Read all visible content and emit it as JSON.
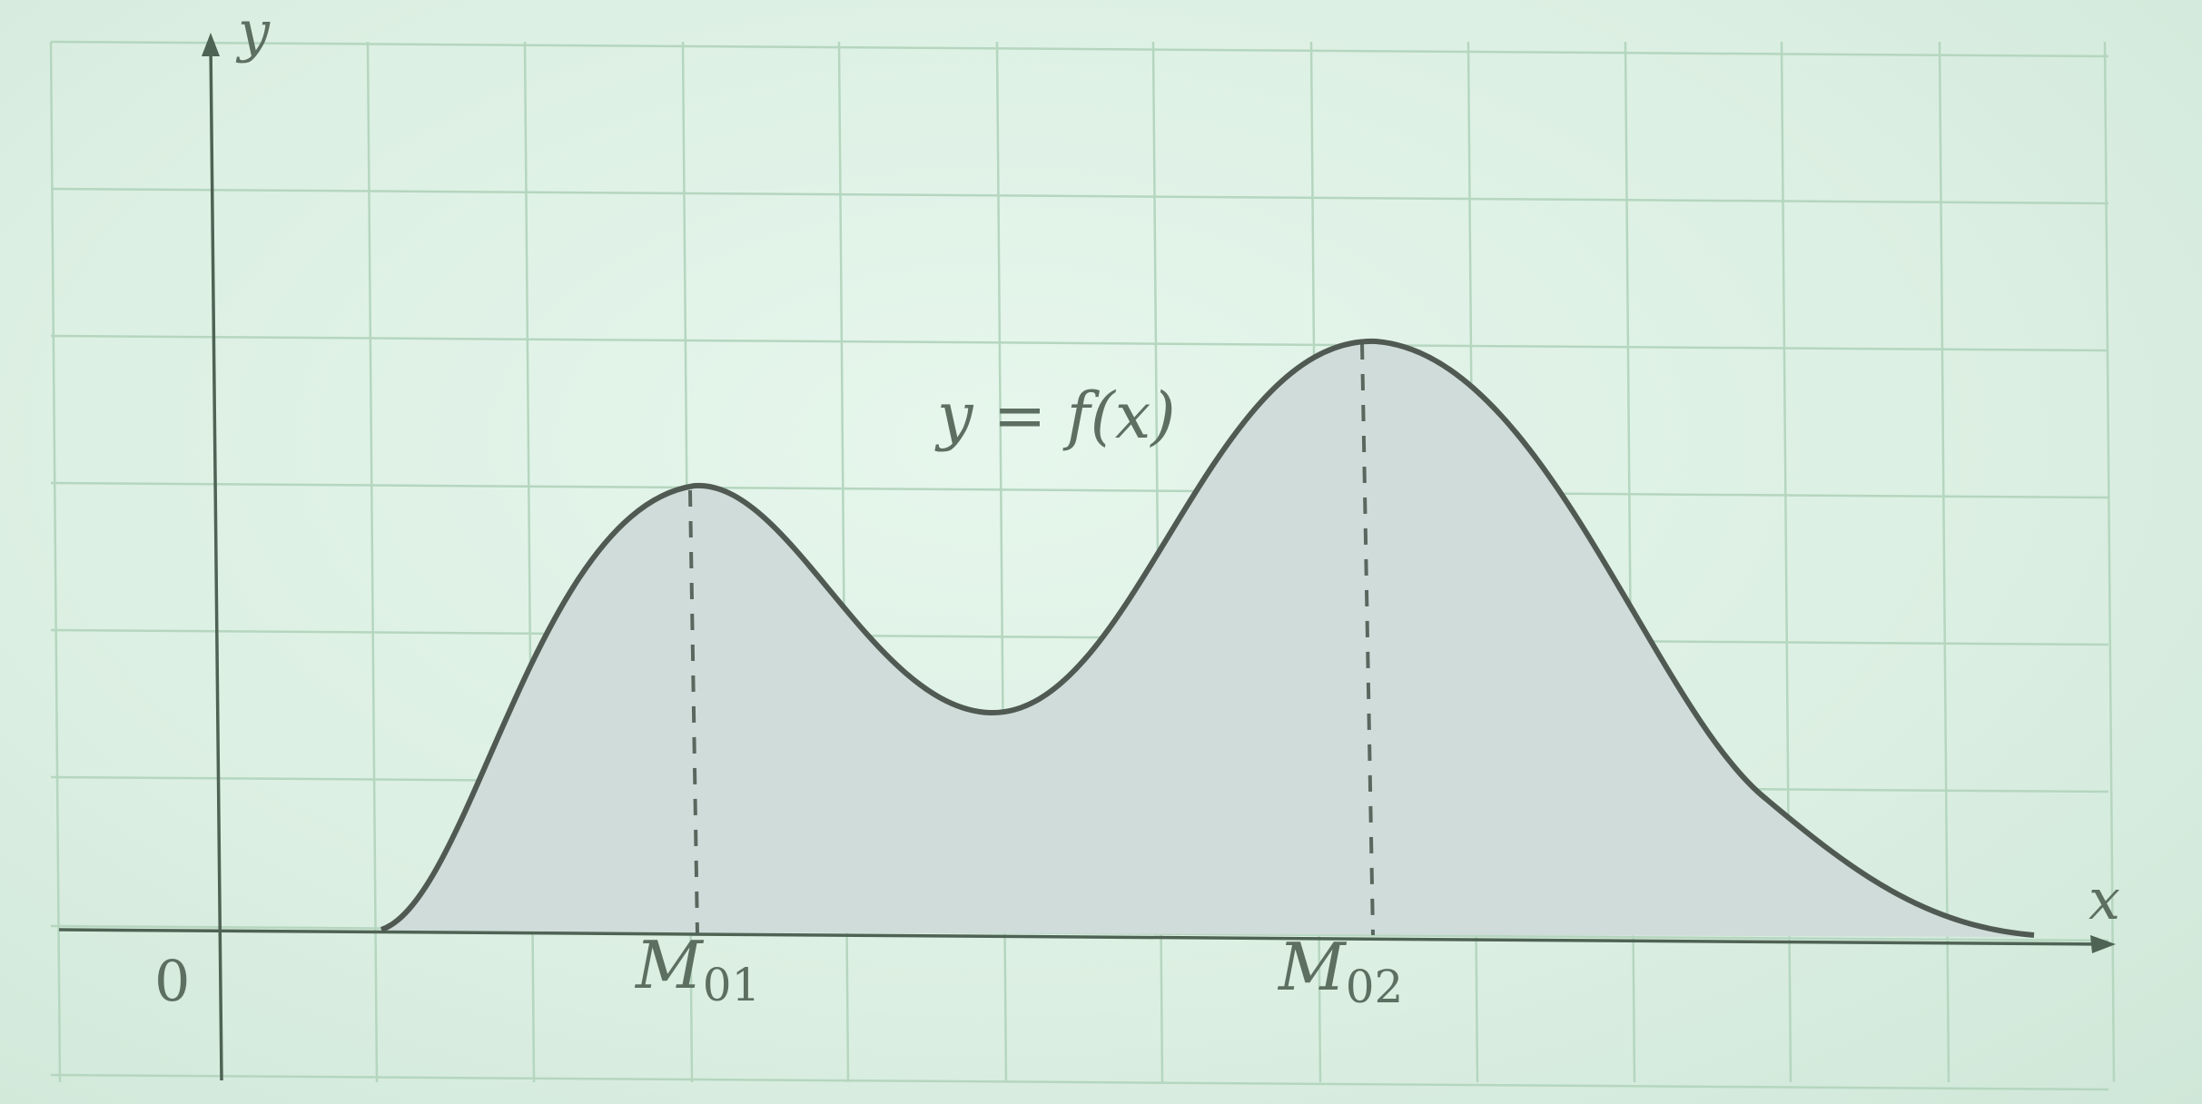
{
  "diagram": {
    "y_axis_label": "y",
    "x_axis_label": "x",
    "origin_label": "0",
    "curve_label": "y = f(x)",
    "maxima": [
      {
        "label": "M",
        "subscript": "01"
      },
      {
        "label": "M",
        "subscript": "02"
      }
    ],
    "colors": {
      "background": "#ddf0e4",
      "grid": "#b5d6bf",
      "curve": "#505a53",
      "area_fill": "#cfdcda",
      "text": "#5d6f61"
    },
    "grid": true
  }
}
